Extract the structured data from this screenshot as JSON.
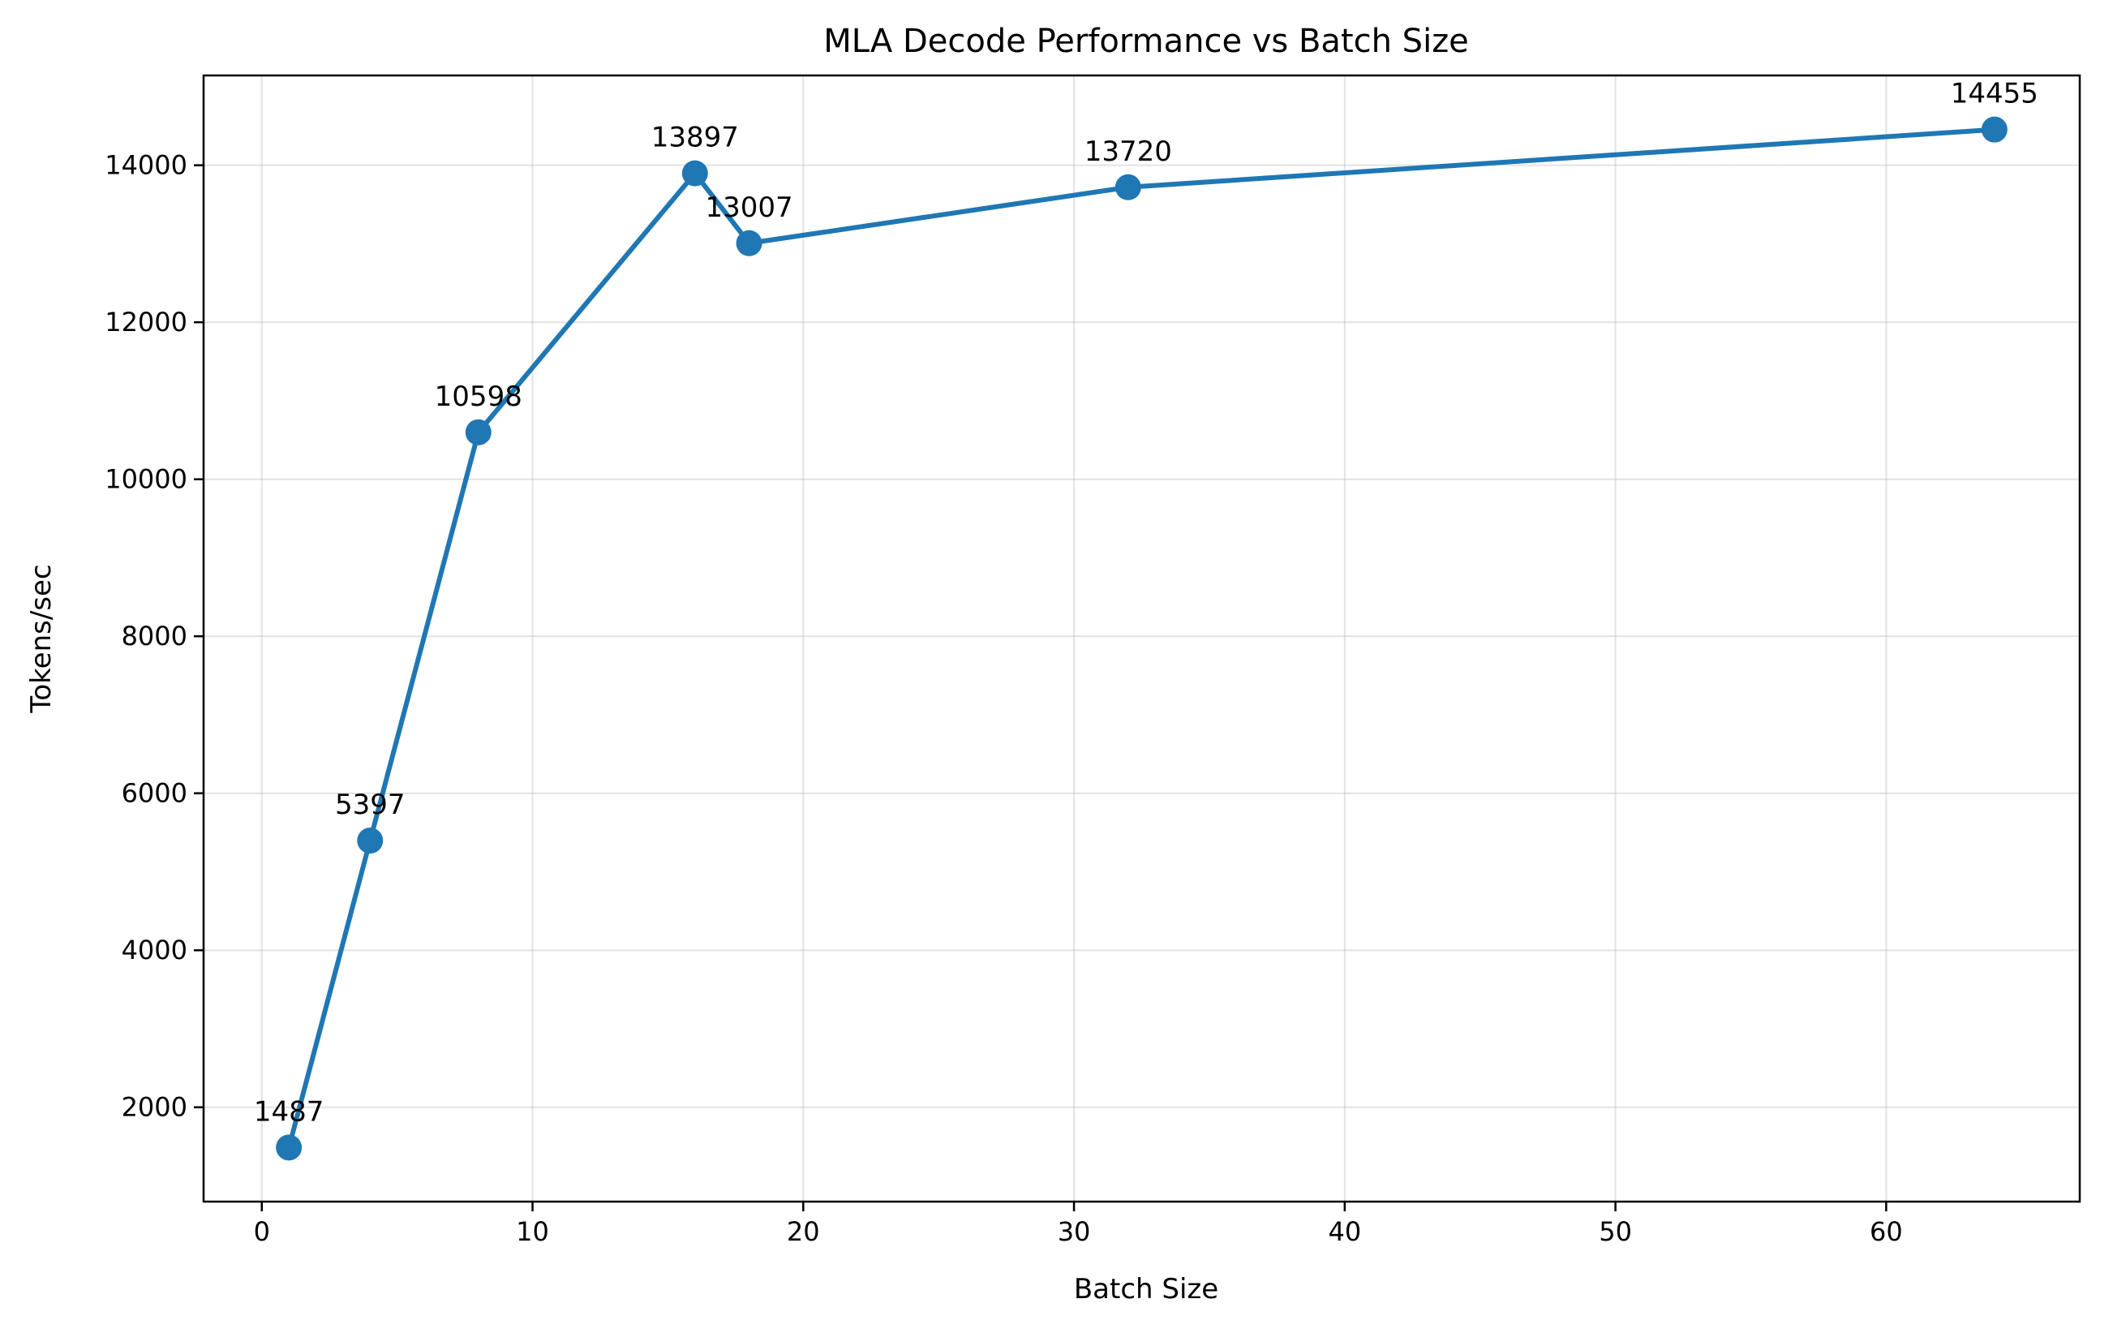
{
  "chart_data": {
    "type": "line",
    "title": "MLA Decode Performance vs Batch Size",
    "xlabel": "Batch Size",
    "ylabel": "Tokens/sec",
    "xlim": [
      -2.15,
      67.15
    ],
    "ylim": [
      798,
      15144
    ],
    "x_ticks": [
      0,
      10,
      20,
      30,
      40,
      50,
      60
    ],
    "y_ticks": [
      2000,
      4000,
      6000,
      8000,
      10000,
      12000,
      14000
    ],
    "grid": true,
    "series": [
      {
        "color": "#1f77b4",
        "points": [
          {
            "x": 1,
            "y": 1487,
            "label": "1487"
          },
          {
            "x": 4,
            "y": 5397,
            "label": "5397"
          },
          {
            "x": 8,
            "y": 10598,
            "label": "10598"
          },
          {
            "x": 16,
            "y": 13897,
            "label": "13897"
          },
          {
            "x": 18,
            "y": 13007,
            "label": "13007"
          },
          {
            "x": 32,
            "y": 13720,
            "label": "13720"
          },
          {
            "x": 64,
            "y": 14455,
            "label": "14455"
          }
        ]
      }
    ]
  }
}
